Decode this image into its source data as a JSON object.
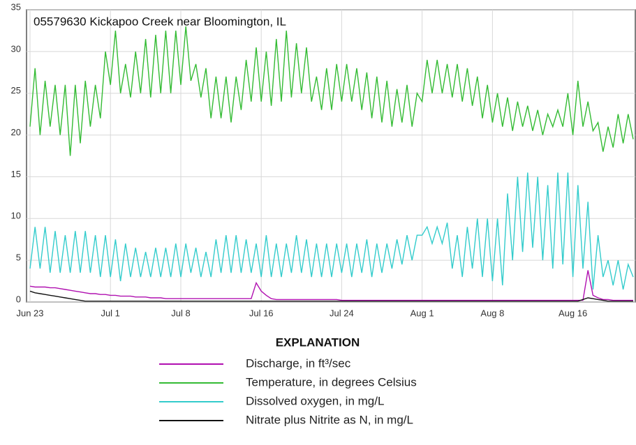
{
  "chart_data": {
    "type": "line",
    "title": "05579630 Kickapoo Creek near Bloomington, IL",
    "legend_title": "EXPLANATION",
    "categories": [
      "Jun 23",
      null,
      null,
      null,
      null,
      null,
      null,
      null,
      null,
      null,
      null,
      null,
      null,
      null,
      null,
      null,
      "Jul 1",
      null,
      null,
      null,
      null,
      null,
      null,
      null,
      null,
      null,
      null,
      null,
      null,
      null,
      "Jul 8",
      null,
      null,
      null,
      null,
      null,
      null,
      null,
      null,
      null,
      null,
      null,
      null,
      null,
      null,
      null,
      "Jul 16",
      null,
      null,
      null,
      null,
      null,
      null,
      null,
      null,
      null,
      null,
      null,
      null,
      null,
      null,
      null,
      "Jul 24",
      null,
      null,
      null,
      null,
      null,
      null,
      null,
      null,
      null,
      null,
      null,
      null,
      null,
      null,
      null,
      "Aug 1",
      null,
      null,
      null,
      null,
      null,
      null,
      null,
      null,
      null,
      null,
      null,
      null,
      null,
      "Aug 8",
      null,
      null,
      null,
      null,
      null,
      null,
      null,
      null,
      null,
      null,
      null,
      null,
      null,
      null,
      null,
      "Aug 16",
      null,
      null,
      null,
      null,
      null,
      null,
      null,
      null,
      null,
      null,
      null,
      null
    ],
    "ylim": [
      0,
      35
    ],
    "yticks": [
      0,
      5,
      10,
      15,
      20,
      25,
      30,
      35
    ],
    "grid": true,
    "series": [
      {
        "name": "Discharge, in ft³/sec",
        "color": "#b010b0",
        "values": [
          1.9,
          1.8,
          1.8,
          1.8,
          1.7,
          1.7,
          1.6,
          1.5,
          1.4,
          1.3,
          1.2,
          1.1,
          1.0,
          1.0,
          0.9,
          0.9,
          0.8,
          0.8,
          0.7,
          0.7,
          0.7,
          0.6,
          0.6,
          0.6,
          0.5,
          0.5,
          0.5,
          0.4,
          0.4,
          0.4,
          0.4,
          0.4,
          0.4,
          0.4,
          0.4,
          0.4,
          0.4,
          0.4,
          0.4,
          0.4,
          0.4,
          0.4,
          0.4,
          0.4,
          0.4,
          2.3,
          1.3,
          0.8,
          0.4,
          0.3,
          0.3,
          0.3,
          0.3,
          0.3,
          0.3,
          0.3,
          0.3,
          0.3,
          0.3,
          0.3,
          0.3,
          0.3,
          0.2,
          0.2,
          0.2,
          0.2,
          0.2,
          0.2,
          0.2,
          0.2,
          0.2,
          0.2,
          0.2,
          0.2,
          0.2,
          0.2,
          0.2,
          0.2,
          0.2,
          0.2,
          0.2,
          0.2,
          0.2,
          0.2,
          0.2,
          0.2,
          0.2,
          0.2,
          0.2,
          0.2,
          0.2,
          0.2,
          0.2,
          0.2,
          0.2,
          0.2,
          0.2,
          0.2,
          0.2,
          0.2,
          0.2,
          0.2,
          0.2,
          0.2,
          0.2,
          0.2,
          0.2,
          0.2,
          0.2,
          0.2,
          0.2,
          3.8,
          0.8,
          0.5,
          0.3,
          0.3,
          0.2,
          0.2,
          0.2,
          0.2,
          0.2
        ]
      },
      {
        "name": "Temperature, in degrees Celsius",
        "color": "#33bb33",
        "values": [
          21,
          28,
          20,
          26.5,
          21,
          26,
          20,
          26,
          17.5,
          26,
          19,
          26.5,
          21,
          26,
          22,
          30,
          26,
          32.5,
          25,
          28.5,
          24.5,
          30,
          25,
          31.5,
          24.5,
          32,
          25,
          32.5,
          25,
          32.5,
          26,
          33,
          26.5,
          28.5,
          24.5,
          28,
          22,
          27,
          22,
          27,
          21.5,
          27,
          23,
          29,
          24,
          30.5,
          24,
          30,
          23.5,
          31.5,
          24,
          32.5,
          24.5,
          31,
          25,
          30.5,
          24,
          27,
          23,
          28,
          23,
          28.5,
          24,
          28.5,
          24,
          28,
          23,
          27.5,
          22,
          27,
          21.5,
          26.5,
          21,
          25.5,
          21.5,
          26,
          21,
          25,
          24,
          29,
          25,
          29,
          25,
          28.5,
          24.5,
          28.5,
          24,
          28,
          23.5,
          27,
          22,
          26,
          21.5,
          25,
          21,
          24.5,
          20.5,
          24,
          21,
          23.5,
          20.5,
          23,
          20,
          22.5,
          21,
          23,
          21,
          25,
          20,
          26.5,
          21,
          24,
          20.5,
          21.5,
          18,
          21,
          18.5,
          22.5,
          19,
          22.5,
          19.5
        ]
      },
      {
        "name": "Dissolved oxygen, in mg/L",
        "color": "#33cccc",
        "values": [
          4,
          9,
          4,
          9,
          3.5,
          8.5,
          3.5,
          8,
          3.5,
          8.5,
          3.5,
          8.5,
          3.5,
          8,
          3,
          8,
          3,
          7.5,
          2.5,
          7,
          3,
          6.5,
          3,
          6,
          3,
          6.5,
          3,
          6.5,
          3,
          7,
          3,
          7,
          3.5,
          6.5,
          3,
          6,
          3,
          7.5,
          3.5,
          8,
          3.5,
          8,
          3.5,
          7.5,
          3.5,
          7,
          3,
          8,
          3,
          7,
          3,
          7,
          3.5,
          8,
          3.5,
          7.5,
          3,
          7,
          3,
          7,
          3,
          7,
          3.5,
          7,
          3,
          7,
          3.5,
          7.5,
          3,
          7,
          3.5,
          7,
          4,
          7.5,
          4.5,
          8,
          5,
          8,
          8,
          9,
          7,
          9,
          7,
          9.5,
          4,
          8,
          3,
          9,
          4,
          10,
          3,
          10,
          2.5,
          10,
          2,
          13,
          5,
          15,
          6,
          15.5,
          6.5,
          15,
          5,
          14,
          4,
          15.5,
          4.5,
          15.5,
          3,
          14,
          4,
          12,
          1.5,
          8,
          3,
          5,
          2,
          5,
          1.5,
          4.5,
          3
        ]
      },
      {
        "name": "Nitrate plus Nitrite as N, in mg/L",
        "color": "#111111",
        "values": [
          1.3,
          1.1,
          1.0,
          0.9,
          0.8,
          0.7,
          0.6,
          0.5,
          0.4,
          0.3,
          0.2,
          0.1,
          0.1,
          0.1,
          0.1,
          0.1,
          0.1,
          0.1,
          0.1,
          0.1,
          0.1,
          0.1,
          0.1,
          0.1,
          0.1,
          0.1,
          0.1,
          0.1,
          0.1,
          0.1,
          0.1,
          0.1,
          0.1,
          0.1,
          0.1,
          0.1,
          0.1,
          0.1,
          0.1,
          0.1,
          0.1,
          0.1,
          0.1,
          0.1,
          0.1,
          0.1,
          0.1,
          0.1,
          0.1,
          0.1,
          0.1,
          0.1,
          0.1,
          0.1,
          0.1,
          0.1,
          0.1,
          0.1,
          0.1,
          0.1,
          0.1,
          0.1,
          0.1,
          0.1,
          0.1,
          0.1,
          0.1,
          0.1,
          0.1,
          0.1,
          0.1,
          0.1,
          0.1,
          0.1,
          0.1,
          0.1,
          0.1,
          0.1,
          0.1,
          0.1,
          0.1,
          0.1,
          0.1,
          0.1,
          0.1,
          0.1,
          0.1,
          0.1,
          0.1,
          0.1,
          0.1,
          0.1,
          0.1,
          0.1,
          0.1,
          0.1,
          0.1,
          0.1,
          0.1,
          0.1,
          0.1,
          0.1,
          0.1,
          0.1,
          0.1,
          0.1,
          0.1,
          0.1,
          0.1,
          0.1,
          0.3,
          0.5,
          0.4,
          0.3,
          0.2,
          0.1,
          0.1,
          0.1,
          0.1,
          0.1,
          0.1
        ]
      }
    ]
  }
}
